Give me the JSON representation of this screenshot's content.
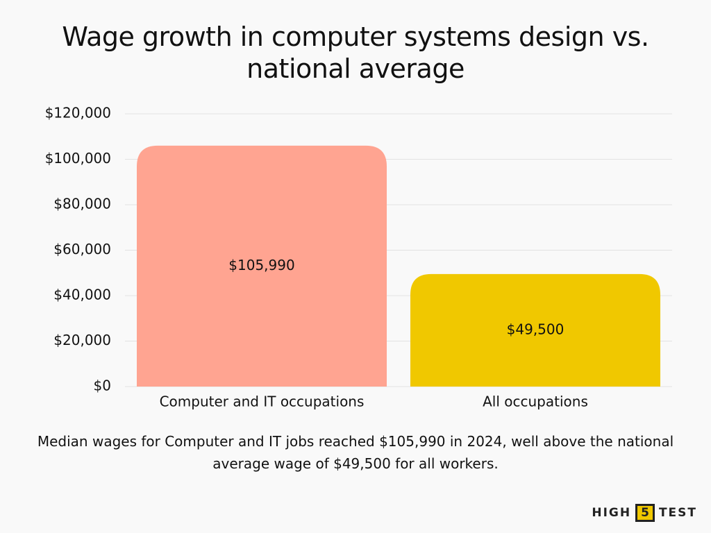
{
  "chart_data": {
    "type": "bar",
    "title": "Wage growth in computer systems design vs. national average",
    "categories": [
      "Computer and IT occupations",
      "All occupations"
    ],
    "values": [
      105990,
      49500
    ],
    "value_labels": [
      "$105,990",
      "$49,500"
    ],
    "colors": [
      "#ffa491",
      "#f0c800"
    ],
    "ylim": [
      0,
      120000
    ],
    "yticks": [
      {
        "value": 0,
        "label": "$0"
      },
      {
        "value": 20000,
        "label": "$20,000"
      },
      {
        "value": 40000,
        "label": "$40,000"
      },
      {
        "value": 60000,
        "label": "$60,000"
      },
      {
        "value": 80000,
        "label": "$80,000"
      },
      {
        "value": 100000,
        "label": "$100,000"
      },
      {
        "value": 120000,
        "label": "$120,000"
      }
    ],
    "grid": true,
    "caption": "Median wages for Computer and IT jobs reached $105,990 in 2024, well above the national average wage of $49,500 for all workers."
  },
  "logo": {
    "left": "HIGH",
    "number": "5",
    "right": "TEST"
  }
}
